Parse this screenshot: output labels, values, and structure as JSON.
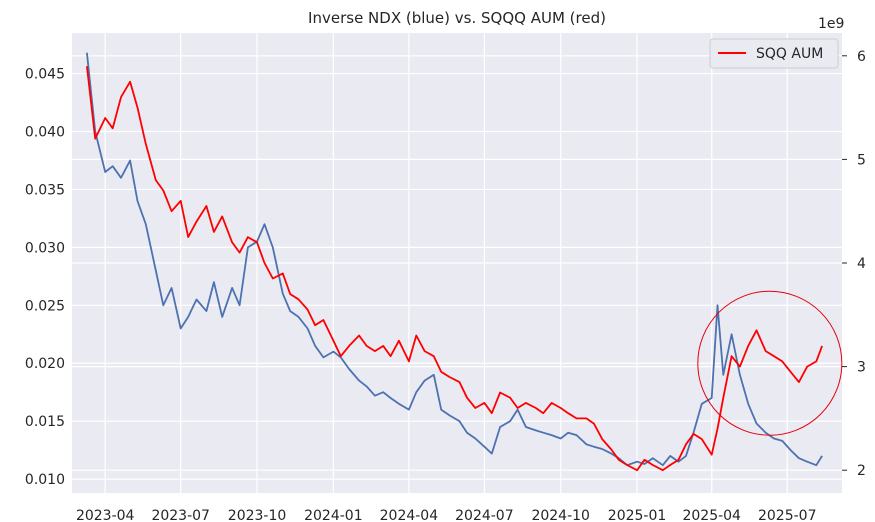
{
  "chart_data": {
    "type": "line",
    "title": "Inverse NDX (blue) vs. SQQQ AUM (red)",
    "xlabel": "",
    "ylabel_left": "",
    "ylabel_right": "",
    "right_axis_multiplier": "1e9",
    "x_ticks": [
      "2023-04",
      "2023-07",
      "2023-10",
      "2024-01",
      "2024-04",
      "2024-07",
      "2024-10",
      "2025-01",
      "2025-04",
      "2025-07"
    ],
    "y_left_ticks": [
      "0.010",
      "0.015",
      "0.020",
      "0.025",
      "0.030",
      "0.035",
      "0.040",
      "0.045"
    ],
    "y_right_ticks": [
      "2",
      "3",
      "4",
      "5",
      "6"
    ],
    "xlim": [
      "2023-02-20",
      "2025-09-05"
    ],
    "ylim_left": [
      0.0088,
      0.0485
    ],
    "ylim_right": [
      1.78,
      6.22
    ],
    "grid": true,
    "legend": {
      "entries": [
        "SQQ AUM"
      ],
      "placement": "top-right"
    },
    "annotations": [
      {
        "type": "circle",
        "center_date": "2025-06-10",
        "center_value_left": 0.02,
        "note_color": "#e8000b"
      }
    ],
    "series": [
      {
        "axis": "left",
        "color": "#4c72b0",
        "x": [
          "2023-03-10",
          "2023-03-20",
          "2023-04-01",
          "2023-04-10",
          "2023-04-20",
          "2023-05-01",
          "2023-05-10",
          "2023-05-20",
          "2023-06-01",
          "2023-06-10",
          "2023-06-20",
          "2023-07-01",
          "2023-07-10",
          "2023-07-20",
          "2023-08-01",
          "2023-08-10",
          "2023-08-20",
          "2023-09-01",
          "2023-09-10",
          "2023-09-20",
          "2023-10-01",
          "2023-10-10",
          "2023-10-20",
          "2023-11-01",
          "2023-11-10",
          "2023-11-20",
          "2023-12-01",
          "2023-12-10",
          "2023-12-20",
          "2024-01-01",
          "2024-01-10",
          "2024-01-20",
          "2024-02-01",
          "2024-02-10",
          "2024-02-20",
          "2024-03-01",
          "2024-03-10",
          "2024-03-20",
          "2024-04-01",
          "2024-04-10",
          "2024-04-20",
          "2024-05-01",
          "2024-05-10",
          "2024-05-20",
          "2024-06-01",
          "2024-06-10",
          "2024-06-20",
          "2024-07-01",
          "2024-07-10",
          "2024-07-20",
          "2024-08-01",
          "2024-08-10",
          "2024-08-20",
          "2024-09-01",
          "2024-09-10",
          "2024-09-20",
          "2024-10-01",
          "2024-10-10",
          "2024-10-20",
          "2024-11-01",
          "2024-11-10",
          "2024-11-20",
          "2024-12-01",
          "2024-12-10",
          "2024-12-20",
          "2025-01-01",
          "2025-01-10",
          "2025-01-20",
          "2025-02-01",
          "2025-02-10",
          "2025-02-20",
          "2025-03-01",
          "2025-03-10",
          "2025-03-20",
          "2025-04-01",
          "2025-04-08",
          "2025-04-15",
          "2025-04-25",
          "2025-05-05",
          "2025-05-15",
          "2025-05-25",
          "2025-06-05",
          "2025-06-15",
          "2025-06-25",
          "2025-07-05",
          "2025-07-15",
          "2025-07-25",
          "2025-08-05",
          "2025-08-12"
        ],
        "values": [
          0.0468,
          0.04,
          0.0365,
          0.037,
          0.036,
          0.0375,
          0.034,
          0.032,
          0.028,
          0.025,
          0.0265,
          0.023,
          0.024,
          0.0255,
          0.0245,
          0.027,
          0.024,
          0.0265,
          0.025,
          0.03,
          0.0305,
          0.032,
          0.03,
          0.026,
          0.0245,
          0.024,
          0.023,
          0.0215,
          0.0205,
          0.021,
          0.0205,
          0.0195,
          0.0185,
          0.018,
          0.0172,
          0.0175,
          0.017,
          0.0165,
          0.016,
          0.0175,
          0.0185,
          0.019,
          0.016,
          0.0155,
          0.015,
          0.014,
          0.0135,
          0.0128,
          0.0122,
          0.0145,
          0.015,
          0.016,
          0.0145,
          0.0142,
          0.014,
          0.0138,
          0.0135,
          0.014,
          0.0138,
          0.013,
          0.0128,
          0.0126,
          0.0122,
          0.0118,
          0.0112,
          0.0115,
          0.0113,
          0.0118,
          0.0112,
          0.012,
          0.0115,
          0.012,
          0.014,
          0.0165,
          0.017,
          0.025,
          0.019,
          0.0225,
          0.019,
          0.0165,
          0.0148,
          0.014,
          0.0135,
          0.0133,
          0.0125,
          0.0118,
          0.0115,
          0.0112,
          0.012
        ]
      },
      {
        "name": "SQQ AUM",
        "axis": "right",
        "color": "#ff0000",
        "x": [
          "2023-03-10",
          "2023-03-20",
          "2023-04-01",
          "2023-04-10",
          "2023-04-20",
          "2023-05-01",
          "2023-05-10",
          "2023-05-20",
          "2023-06-01",
          "2023-06-10",
          "2023-06-20",
          "2023-07-01",
          "2023-07-10",
          "2023-07-20",
          "2023-08-01",
          "2023-08-10",
          "2023-08-20",
          "2023-09-01",
          "2023-09-10",
          "2023-09-20",
          "2023-10-01",
          "2023-10-10",
          "2023-10-20",
          "2023-11-01",
          "2023-11-10",
          "2023-11-20",
          "2023-12-01",
          "2023-12-10",
          "2023-12-20",
          "2024-01-01",
          "2024-01-10",
          "2024-01-20",
          "2024-02-01",
          "2024-02-10",
          "2024-02-20",
          "2024-03-01",
          "2024-03-10",
          "2024-03-20",
          "2024-04-01",
          "2024-04-10",
          "2024-04-20",
          "2024-05-01",
          "2024-05-10",
          "2024-05-20",
          "2024-06-01",
          "2024-06-10",
          "2024-06-20",
          "2024-07-01",
          "2024-07-10",
          "2024-07-20",
          "2024-08-01",
          "2024-08-10",
          "2024-08-20",
          "2024-09-01",
          "2024-09-10",
          "2024-09-20",
          "2024-10-01",
          "2024-10-10",
          "2024-10-20",
          "2024-11-01",
          "2024-11-10",
          "2024-11-20",
          "2024-12-01",
          "2024-12-10",
          "2024-12-20",
          "2025-01-01",
          "2025-01-10",
          "2025-01-20",
          "2025-02-01",
          "2025-02-10",
          "2025-02-20",
          "2025-03-01",
          "2025-03-10",
          "2025-03-20",
          "2025-04-01",
          "2025-04-08",
          "2025-04-15",
          "2025-04-25",
          "2025-05-05",
          "2025-05-15",
          "2025-05-25",
          "2025-06-05",
          "2025-06-15",
          "2025-06-25",
          "2025-07-05",
          "2025-07-15",
          "2025-07-25",
          "2025-08-05",
          "2025-08-12"
        ],
        "values": [
          5.9,
          5.2,
          5.4,
          5.3,
          5.6,
          5.75,
          5.5,
          5.15,
          4.8,
          4.7,
          4.5,
          4.6,
          4.25,
          4.4,
          4.55,
          4.3,
          4.45,
          4.2,
          4.1,
          4.25,
          4.2,
          4.0,
          3.85,
          3.9,
          3.7,
          3.65,
          3.55,
          3.4,
          3.45,
          3.25,
          3.1,
          3.2,
          3.3,
          3.2,
          3.15,
          3.2,
          3.1,
          3.25,
          3.05,
          3.3,
          3.15,
          3.1,
          2.95,
          2.9,
          2.85,
          2.7,
          2.6,
          2.65,
          2.55,
          2.75,
          2.7,
          2.6,
          2.65,
          2.6,
          2.55,
          2.65,
          2.6,
          2.55,
          2.5,
          2.5,
          2.45,
          2.3,
          2.2,
          2.1,
          2.05,
          2.0,
          2.1,
          2.05,
          2.0,
          2.05,
          2.1,
          2.25,
          2.35,
          2.3,
          2.15,
          2.4,
          2.7,
          3.1,
          3.0,
          3.2,
          3.35,
          3.15,
          3.1,
          3.05,
          2.95,
          2.85,
          3.0,
          3.05,
          3.2
        ]
      }
    ]
  }
}
